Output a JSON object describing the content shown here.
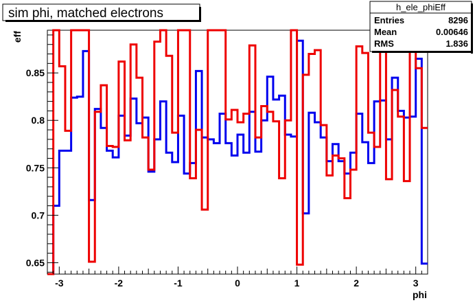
{
  "title": "sim phi, matched electrons",
  "stats_box": {
    "name": "h_ele_phiEff",
    "rows": [
      {
        "label": "Entries",
        "value": "8296"
      },
      {
        "label": "Mean",
        "value": "0.00646"
      },
      {
        "label": "RMS",
        "value": "1.836"
      }
    ]
  },
  "chart_data": {
    "type": "line",
    "drawstyle": "steps",
    "title": "sim phi, matched electrons",
    "xlabel": "phi",
    "ylabel": "eff",
    "xlim": [
      -3.2,
      3.2
    ],
    "ylim": [
      0.638,
      0.895
    ],
    "x_ticks": [
      -3,
      -2,
      -1,
      0,
      1,
      2,
      3
    ],
    "x_tick_labels": [
      "-3",
      "-2",
      "-1",
      "0",
      "1",
      "2",
      "3"
    ],
    "y_ticks": [
      0.65,
      0.7,
      0.75,
      0.8,
      0.85
    ],
    "y_tick_labels": [
      "0.65",
      "0.7",
      "0.75",
      "0.8",
      "0.85"
    ],
    "grid": false,
    "legend": false,
    "bin_edges": [
      -3.2,
      -3.1,
      -3.0,
      -2.9,
      -2.8,
      -2.7,
      -2.6,
      -2.5,
      -2.4,
      -2.3,
      -2.2,
      -2.1,
      -2.0,
      -1.9,
      -1.8,
      -1.7,
      -1.6,
      -1.5,
      -1.4,
      -1.3,
      -1.2,
      -1.1,
      -1.0,
      -0.9,
      -0.8,
      -0.7,
      -0.6,
      -0.5,
      -0.4,
      -0.3,
      -0.2,
      -0.1,
      0.0,
      0.1,
      0.2,
      0.3,
      0.4,
      0.5,
      0.6,
      0.7,
      0.8,
      0.9,
      1.0,
      1.1,
      1.2,
      1.3,
      1.4,
      1.5,
      1.6,
      1.7,
      1.8,
      1.9,
      2.0,
      2.1,
      2.2,
      2.3,
      2.4,
      2.5,
      2.6,
      2.7,
      2.8,
      2.9,
      3.0,
      3.1,
      3.2
    ],
    "series": [
      {
        "color": "#0000ee",
        "values": [
          0.638,
          0.71,
          0.768,
          0.768,
          0.824,
          0.825,
          0.873,
          0.716,
          0.812,
          0.792,
          0.768,
          0.761,
          0.805,
          0.784,
          0.823,
          0.797,
          0.803,
          0.746,
          0.78,
          0.82,
          0.766,
          0.756,
          0.805,
          0.744,
          0.755,
          0.852,
          0.782,
          0.78,
          0.776,
          0.807,
          0.776,
          0.763,
          0.785,
          0.766,
          0.809,
          0.767,
          0.8,
          0.846,
          0.822,
          0.826,
          0.785,
          0.783,
          0.884,
          0.702,
          0.808,
          0.798,
          0.782,
          0.757,
          0.775,
          0.757,
          0.744,
          0.766,
          0.807,
          0.777,
          0.755,
          0.82,
          0.821,
          0.78,
          0.845,
          0.81,
          0.803,
          0.804,
          0.865,
          0.649
        ]
      },
      {
        "color": "#ee0000",
        "values": [
          0.638,
          0.895,
          0.857,
          0.789,
          0.895,
          0.895,
          0.895,
          0.651,
          0.809,
          0.837,
          0.773,
          0.772,
          0.862,
          0.779,
          0.88,
          0.845,
          0.782,
          0.748,
          0.883,
          0.895,
          0.868,
          0.787,
          0.895,
          0.895,
          0.739,
          0.79,
          0.706,
          0.895,
          0.895,
          0.895,
          0.801,
          0.811,
          0.798,
          0.807,
          0.879,
          0.782,
          0.815,
          0.809,
          0.799,
          0.739,
          0.8,
          0.895,
          0.648,
          0.848,
          0.87,
          0.874,
          0.795,
          0.742,
          0.763,
          0.76,
          0.718,
          0.748,
          0.878,
          0.871,
          0.787,
          0.772,
          0.895,
          0.738,
          0.832,
          0.804,
          0.736,
          0.876,
          0.855,
          0.792
        ]
      }
    ]
  }
}
